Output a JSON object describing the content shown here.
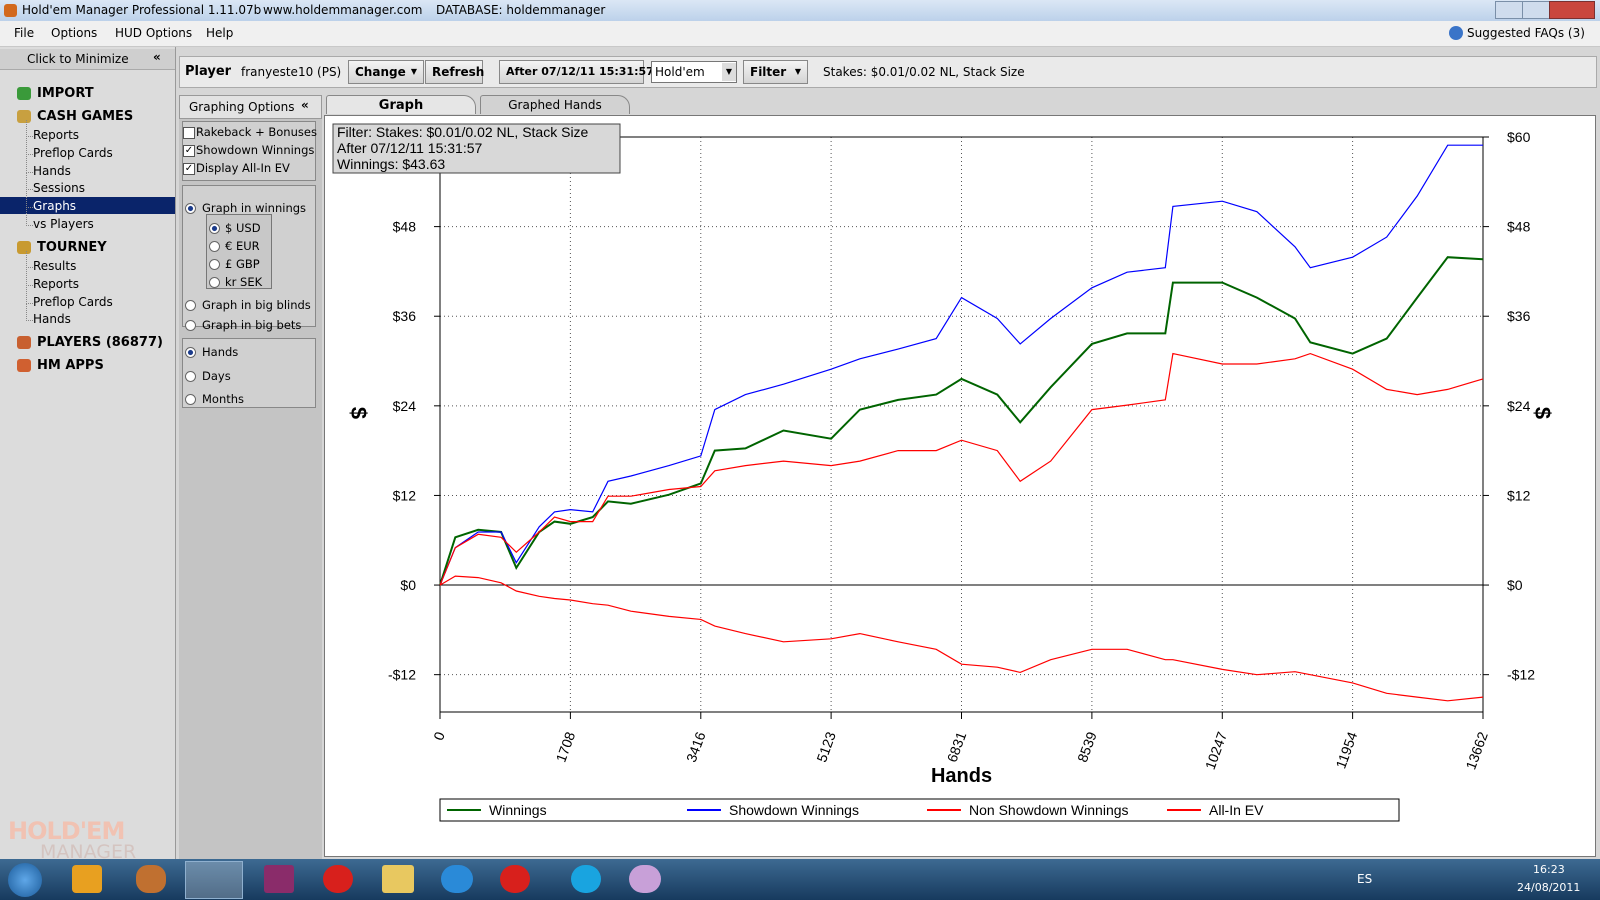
{
  "window": {
    "title": "Hold'em Manager Professional 1.11.07b",
    "url": "www.holdemmanager.com",
    "database": "DATABASE: holdemmanager"
  },
  "menu": {
    "items": [
      "File",
      "Options",
      "HUD Options",
      "Help"
    ],
    "faq": "Suggested FAQs (3)"
  },
  "sidebar": {
    "minimize": "Click to Minimize",
    "sections": [
      {
        "label": "IMPORT",
        "items": []
      },
      {
        "label": "CASH GAMES",
        "items": [
          "Reports",
          "Preflop Cards",
          "Hands",
          "Sessions",
          "Graphs",
          "vs Players"
        ],
        "selected": 4
      },
      {
        "label": "TOURNEY",
        "items": [
          "Results",
          "Reports",
          "Preflop Cards",
          "Hands"
        ]
      },
      {
        "label": "PLAYERS (86877)",
        "items": []
      },
      {
        "label": "HM APPS",
        "items": []
      }
    ],
    "logo": [
      "HOLD'EM",
      "MANAGER"
    ]
  },
  "toolbar": {
    "player_label": "Player",
    "player": "franyeste10 (PS)",
    "change": "Change",
    "refresh": "Refresh",
    "after": "After 07/12/11 15:31:57",
    "game": "Hold'em",
    "filter": "Filter",
    "stakes": "Stakes: $0.01/0.02 NL, Stack Size"
  },
  "graphing_options": {
    "header": "Graphing Options",
    "checkboxes": [
      {
        "label": "Rakeback + Bonuses",
        "checked": false
      },
      {
        "label": "Showdown Winnings",
        "checked": true
      },
      {
        "label": "Display All-In EV",
        "checked": true
      }
    ],
    "graph_mode": {
      "options": [
        "Graph in winnings",
        "Graph in big blinds",
        "Graph in big bets"
      ],
      "selected": 0
    },
    "currency": {
      "options": [
        "$ USD",
        "€ EUR",
        "£ GBP",
        "kr SEK"
      ],
      "selected": 0
    },
    "period": {
      "options": [
        "Hands",
        "Days",
        "Months"
      ],
      "selected": 0
    }
  },
  "tabs": {
    "items": [
      "Graph",
      "Graphed Hands"
    ],
    "selected": 0
  },
  "chart_data": {
    "type": "line",
    "annotations": [
      "Filter: Stakes: $0.01/0.02 NL, Stack Size",
      "After 07/12/11 15:31:57",
      "Winnings: $43.63"
    ],
    "x_label": "Hands",
    "y_label": "$",
    "x": [
      0,
      200,
      500,
      800,
      1000,
      1300,
      1500,
      1708,
      2000,
      2200,
      2500,
      3000,
      3416,
      3600,
      4000,
      4500,
      5123,
      5500,
      6000,
      6500,
      6831,
      7300,
      7600,
      8000,
      8539,
      9000,
      9500,
      9600,
      10247,
      10700,
      11200,
      11400,
      11954,
      12400,
      12800,
      13200,
      13662
    ],
    "series": [
      {
        "name": "Winnings",
        "color": "#006400",
        "values": [
          0,
          6.4,
          7.4,
          7.1,
          2.3,
          7.1,
          8.5,
          8.2,
          9.1,
          11.2,
          10.9,
          12.1,
          13.6,
          18.0,
          18.3,
          20.7,
          19.6,
          23.5,
          24.8,
          25.5,
          27.6,
          25.5,
          21.8,
          26.5,
          32.3,
          33.7,
          33.7,
          40.5,
          40.5,
          38.5,
          35.7,
          32.5,
          31.0,
          33.0,
          38.5,
          43.9,
          43.63
        ]
      },
      {
        "name": "Showdown Winnings",
        "color": "#0000ff",
        "values": [
          0,
          5.0,
          7.1,
          7.1,
          3.0,
          7.8,
          9.8,
          10.1,
          9.8,
          13.9,
          14.6,
          16.0,
          17.3,
          23.5,
          25.5,
          26.9,
          28.9,
          30.3,
          31.6,
          33.0,
          38.5,
          35.7,
          32.3,
          35.7,
          39.8,
          41.9,
          42.5,
          50.7,
          51.4,
          50.0,
          45.3,
          42.5,
          43.9,
          46.6,
          52.1,
          58.9,
          58.9
        ]
      },
      {
        "name": "Non Showdown Winnings",
        "color": "#ff0000",
        "values": [
          0,
          5.0,
          6.8,
          6.4,
          4.4,
          7.1,
          9.1,
          8.5,
          8.5,
          11.9,
          11.9,
          12.8,
          13.2,
          15.3,
          16.0,
          16.6,
          16.0,
          16.6,
          18.0,
          18.0,
          19.4,
          18.0,
          13.9,
          16.6,
          23.5,
          24.1,
          24.8,
          31.0,
          29.6,
          29.6,
          30.3,
          31.0,
          28.9,
          26.2,
          25.5,
          26.2,
          27.6
        ]
      },
      {
        "name": "All-In EV",
        "color": "#ff0000",
        "values": [
          0,
          1.2,
          1.0,
          0.3,
          -0.8,
          -1.5,
          -1.8,
          -2.0,
          -2.5,
          -2.7,
          -3.5,
          -4.2,
          -4.6,
          -5.5,
          -6.5,
          -7.6,
          -7.2,
          -6.5,
          -7.6,
          -8.6,
          -10.6,
          -11.0,
          -11.7,
          -10.0,
          -8.6,
          -8.6,
          -10.0,
          -10.0,
          -11.3,
          -12.0,
          -11.6,
          -12.0,
          -13.1,
          -14.5,
          -15.0,
          -15.5,
          -15.0
        ]
      }
    ],
    "xlim": [
      0,
      13662
    ],
    "xticks": [
      0,
      1708,
      3416,
      5123,
      6831,
      8539,
      10247,
      11954,
      13662
    ],
    "ylim": [
      -17,
      60
    ],
    "yticks": [
      {
        "value": -12,
        "label": "-$12"
      },
      {
        "value": 0,
        "label": "$0"
      },
      {
        "value": 12,
        "label": "$12"
      },
      {
        "value": 24,
        "label": "$24"
      },
      {
        "value": 36,
        "label": "$36"
      },
      {
        "value": 48,
        "label": "$48"
      },
      {
        "value": 60,
        "label": "$60"
      }
    ],
    "grid": true
  },
  "taskbar": {
    "language": "ES",
    "time": "16:23",
    "date": "24/08/2011"
  }
}
